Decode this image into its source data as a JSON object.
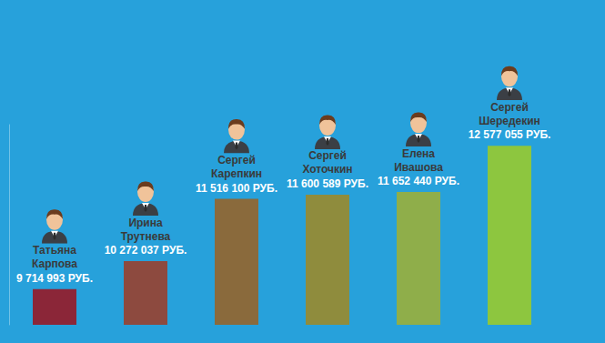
{
  "chart_data": {
    "type": "bar",
    "categories": [
      "Татьяна Карпова",
      "Ирина Трутнева",
      "Сергей Карепкин",
      "Сергей Хоточкин",
      "Елена Ивашова",
      "Сергей Шередекин"
    ],
    "values": [
      9714993,
      10272037,
      11516100,
      11600589,
      11652440,
      12577055
    ],
    "value_labels": [
      "9 714 993 РУБ.",
      "10 272 037 РУБ.",
      "11 516 100 РУБ.",
      "11 600 589 РУБ.",
      "11 652 440 РУБ.",
      "12 577 055 РУБ."
    ],
    "colors": [
      "#8b2638",
      "#8d4a3f",
      "#8a6a3c",
      "#8f8c3d",
      "#8fae4a",
      "#8dc63f"
    ],
    "ylim": [
      9000000,
      13000000
    ],
    "data_labels": true,
    "tick_labels": false,
    "grid": false
  }
}
